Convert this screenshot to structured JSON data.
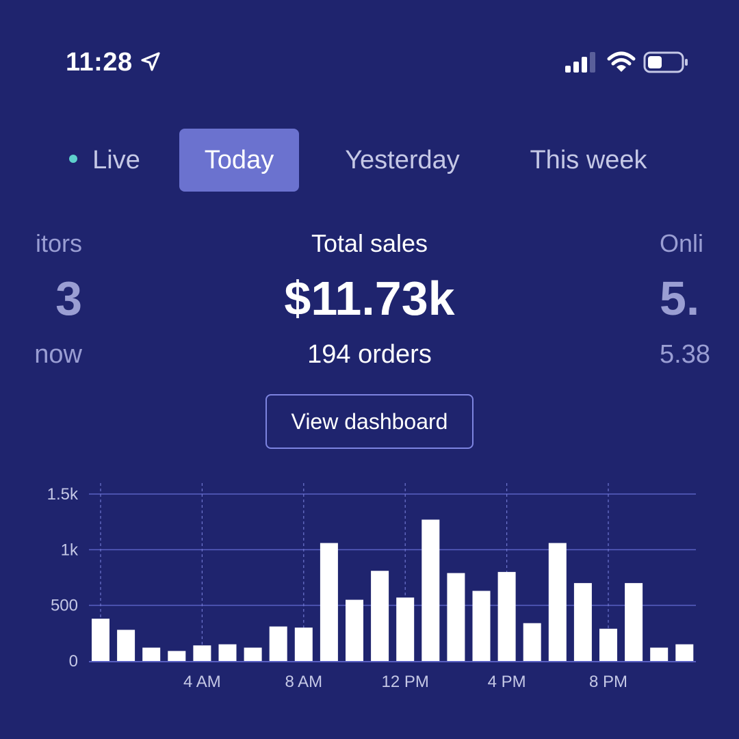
{
  "status": {
    "time": "11:28"
  },
  "icons": {
    "location": "location-arrow-icon",
    "signal": "cellular-signal-icon",
    "wifi": "wifi-icon",
    "battery": "battery-icon"
  },
  "tabs": [
    {
      "label": "Live",
      "selected": false
    },
    {
      "label": "Today",
      "selected": true
    },
    {
      "label": "Yesterday",
      "selected": false
    },
    {
      "label": "This week",
      "selected": false
    }
  ],
  "metrics": {
    "left": {
      "label": "itors",
      "value": "3",
      "sub": "now"
    },
    "center": {
      "label": "Total sales",
      "value": "$11.73k",
      "sub": "194 orders"
    },
    "right": {
      "label": "Onli",
      "value": "5.",
      "sub": "5.38"
    }
  },
  "dashboard_button": "View dashboard",
  "colors": {
    "background": "#1f246e",
    "accent": "#6b72cf",
    "live_dot": "#5ed0cc"
  },
  "chart_data": {
    "type": "bar",
    "x": [
      0,
      1,
      2,
      3,
      4,
      5,
      6,
      7,
      8,
      9,
      10,
      11,
      12,
      13,
      14,
      15,
      16,
      17,
      18,
      19,
      20,
      21,
      22,
      23
    ],
    "values": [
      380,
      280,
      120,
      90,
      140,
      150,
      120,
      310,
      300,
      1060,
      550,
      810,
      570,
      1270,
      790,
      630,
      800,
      340,
      1060,
      700,
      290,
      700,
      120,
      150
    ],
    "x_tick_labels": [
      "4 AM",
      "8 AM",
      "12 PM",
      "4 PM",
      "8 PM"
    ],
    "x_tick_positions": [
      4,
      8,
      12,
      16,
      20
    ],
    "y_ticks": [
      0,
      500,
      1000,
      1500
    ],
    "y_tick_labels": [
      "0",
      "500",
      "1k",
      "1.5k"
    ],
    "ylim": [
      0,
      1500
    ],
    "grid": true
  }
}
